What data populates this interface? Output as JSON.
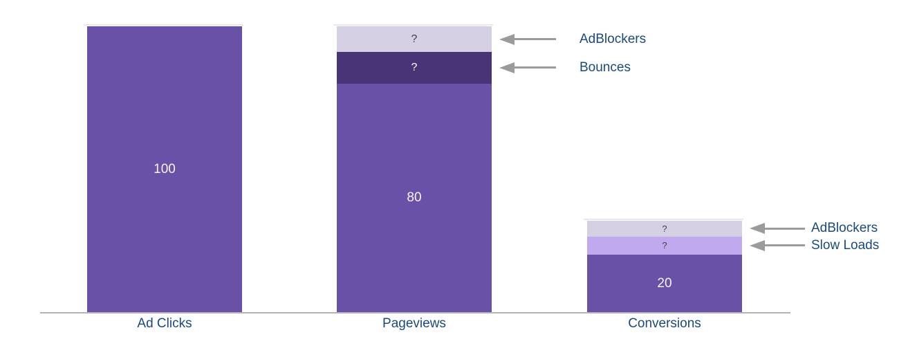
{
  "chart_data": {
    "type": "bar",
    "subtype": "stacked funnel bar chart with annotated loss segments",
    "title": "",
    "xlabel": "",
    "ylabel": "",
    "grid": false,
    "y_axis_visible": false,
    "categories": [
      "Ad Clicks",
      "Pageviews",
      "Conversions"
    ],
    "bars": [
      {
        "category": "Ad Clicks",
        "segments": [
          {
            "name": "ad-clicks-value",
            "label": "100",
            "value": 100,
            "units": 100,
            "color": "#6951a7",
            "label_color": "#f7f5fa"
          }
        ]
      },
      {
        "category": "Pageviews",
        "segments": [
          {
            "name": "adblockers",
            "label": "?",
            "value": null,
            "units": 9,
            "color": "#d5d0e4",
            "label_color": "#413f4a",
            "annotation": "AdBlockers"
          },
          {
            "name": "bounces",
            "label": "?",
            "value": null,
            "units": 11,
            "color": "#4a3478",
            "label_color": "#ffffff",
            "annotation": "Bounces"
          },
          {
            "name": "pageviews-value",
            "label": "80",
            "value": 80,
            "units": 80,
            "color": "#6951a7",
            "label_color": "#f7f5fa"
          }
        ]
      },
      {
        "category": "Conversions",
        "segments": [
          {
            "name": "adblockers",
            "label": "?",
            "value": null,
            "units": 5.5,
            "color": "#d5d0e4",
            "label_color": "#413f4a",
            "annotation": "AdBlockers"
          },
          {
            "name": "slow-loads",
            "label": "?",
            "value": null,
            "units": 6.5,
            "color": "#c1a9ef",
            "label_color": "#413f4a",
            "annotation": "Slow Loads"
          },
          {
            "name": "conversions-value",
            "label": "20",
            "value": 20,
            "units": 20,
            "color": "#6951a7",
            "label_color": "#f7f5fa"
          }
        ]
      }
    ],
    "annotations": [
      {
        "text": "AdBlockers",
        "bar": "Pageviews"
      },
      {
        "text": "Bounces",
        "bar": "Pageviews"
      },
      {
        "text": "AdBlockers",
        "bar": "Conversions"
      },
      {
        "text": "Slow Loads",
        "bar": "Conversions"
      }
    ]
  },
  "colors": {
    "background": "#ffffff",
    "bar_main": "#6951a7",
    "segment_dark": "#4a3478",
    "segment_lavender": "#d5d0e4",
    "segment_light_purple": "#c1a9ef",
    "category_text": "#1a4a7b",
    "annotation_text": "#1a4a7b",
    "arrow": "#9b9b9b",
    "axis_line": "#b4b2b9"
  }
}
